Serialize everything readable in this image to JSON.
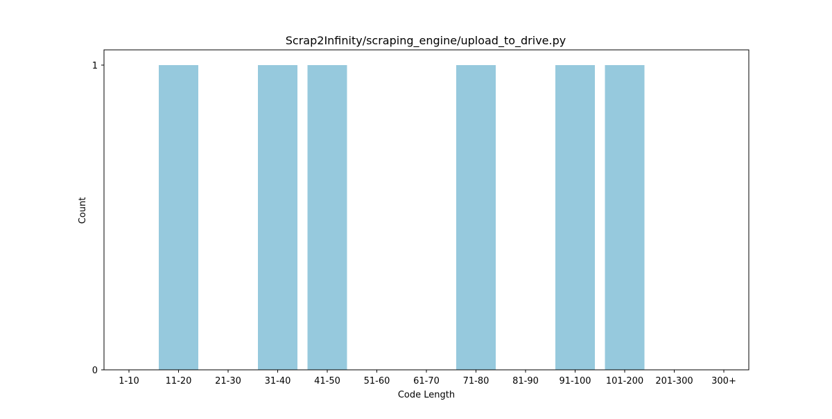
{
  "chart_data": {
    "type": "bar",
    "title": "Scrap2Infinity/scraping_engine/upload_to_drive.py",
    "xlabel": "Code Length",
    "ylabel": "Count",
    "categories": [
      "1-10",
      "11-20",
      "21-30",
      "31-40",
      "41-50",
      "51-60",
      "61-70",
      "71-80",
      "81-90",
      "91-100",
      "101-200",
      "201-300",
      "300+"
    ],
    "values": [
      0,
      1,
      0,
      1,
      1,
      0,
      0,
      1,
      0,
      1,
      1,
      0,
      0
    ],
    "ylim": [
      0,
      1
    ],
    "yticks": [
      0,
      1
    ],
    "bar_color": "#96c9dd",
    "grid": false,
    "legend": "none"
  }
}
